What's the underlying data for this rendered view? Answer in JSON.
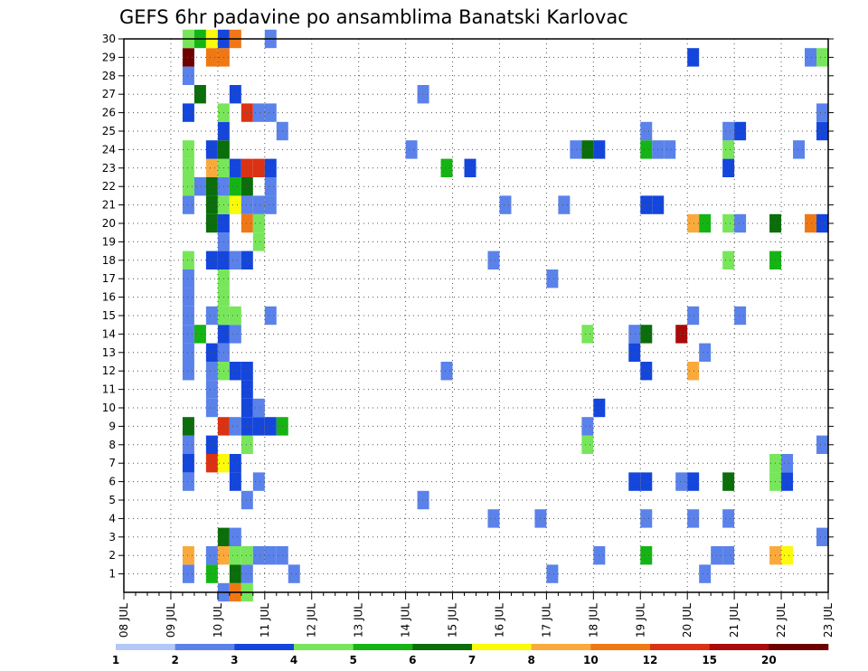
{
  "chart_data": {
    "type": "heatmap",
    "title": "GEFS 6hr padavine po ansamblima Banatski Karlovac",
    "xlabel": "",
    "ylabel": "",
    "x_ticks": [
      "08 JUL",
      "09 JUL",
      "10 JUL",
      "11 JUL",
      "12 JUL",
      "13 JUL",
      "14 JUL",
      "15 JUL",
      "16 JUL",
      "17 JUL",
      "18 JUL",
      "19 JUL",
      "20 JUL",
      "21 JUL",
      "22 JUL",
      "23 JUL"
    ],
    "x_range": [
      "08 JUL 00Z",
      "23 JUL 00Z"
    ],
    "y_ticks": [
      1,
      2,
      3,
      4,
      5,
      6,
      7,
      8,
      9,
      10,
      11,
      12,
      13,
      14,
      15,
      16,
      17,
      18,
      19,
      20,
      21,
      22,
      23,
      24,
      25,
      26,
      27,
      28,
      29,
      30
    ],
    "y_range": [
      0,
      30
    ],
    "grid": true,
    "time_step_hours": 6,
    "colorbar": {
      "labels": [
        "1",
        "2",
        "3",
        "4",
        "5",
        "6",
        "7",
        "8",
        "10",
        "12",
        "15",
        "20"
      ],
      "colors": [
        "#b4c8f8",
        "#5a82ea",
        "#1446dc",
        "#78e65a",
        "#14b414",
        "#0a6e0a",
        "#fafa0a",
        "#faaa3c",
        "#f07814",
        "#dc3214",
        "#aa0a0a",
        "#6e0000"
      ]
    },
    "cells": [
      [
        "09 JUL 06Z",
        1,
        1
      ],
      [
        "09 JUL 06Z",
        2,
        7
      ],
      [
        "09 JUL 06Z",
        6,
        1
      ],
      [
        "09 JUL 06Z",
        7,
        2
      ],
      [
        "09 JUL 06Z",
        8,
        1
      ],
      [
        "09 JUL 06Z",
        9,
        5
      ],
      [
        "09 JUL 06Z",
        12,
        1
      ],
      [
        "09 JUL 06Z",
        13,
        1
      ],
      [
        "09 JUL 06Z",
        14,
        1
      ],
      [
        "09 JUL 06Z",
        15,
        1
      ],
      [
        "09 JUL 06Z",
        16,
        1
      ],
      [
        "09 JUL 06Z",
        17,
        1
      ],
      [
        "09 JUL 06Z",
        18,
        3
      ],
      [
        "09 JUL 06Z",
        21,
        1
      ],
      [
        "09 JUL 06Z",
        22,
        3
      ],
      [
        "09 JUL 06Z",
        23,
        3
      ],
      [
        "09 JUL 06Z",
        24,
        3
      ],
      [
        "09 JUL 06Z",
        26,
        2
      ],
      [
        "09 JUL 06Z",
        28,
        1
      ],
      [
        "09 JUL 06Z",
        29,
        11
      ],
      [
        "09 JUL 06Z",
        30,
        3
      ],
      [
        "09 JUL 12Z",
        14,
        4
      ],
      [
        "09 JUL 12Z",
        22,
        1
      ],
      [
        "09 JUL 12Z",
        27,
        5
      ],
      [
        "09 JUL 12Z",
        30,
        4
      ],
      [
        "09 JUL 18Z",
        1,
        4
      ],
      [
        "09 JUL 18Z",
        2,
        1
      ],
      [
        "09 JUL 18Z",
        7,
        9
      ],
      [
        "09 JUL 18Z",
        8,
        2
      ],
      [
        "09 JUL 18Z",
        10,
        1
      ],
      [
        "09 JUL 18Z",
        11,
        1
      ],
      [
        "09 JUL 18Z",
        12,
        1
      ],
      [
        "09 JUL 18Z",
        13,
        2
      ],
      [
        "09 JUL 18Z",
        15,
        1
      ],
      [
        "09 JUL 18Z",
        18,
        2
      ],
      [
        "09 JUL 18Z",
        20,
        5
      ],
      [
        "09 JUL 18Z",
        21,
        5
      ],
      [
        "09 JUL 18Z",
        22,
        5
      ],
      [
        "09 JUL 18Z",
        23,
        7
      ],
      [
        "09 JUL 18Z",
        24,
        2
      ],
      [
        "09 JUL 18Z",
        29,
        8
      ],
      [
        "09 JUL 18Z",
        30,
        6
      ],
      [
        "10 JUL 00Z",
        0,
        1
      ],
      [
        "10 JUL 00Z",
        2,
        7
      ],
      [
        "10 JUL 00Z",
        3,
        5
      ],
      [
        "10 JUL 00Z",
        7,
        6
      ],
      [
        "10 JUL 00Z",
        9,
        9
      ],
      [
        "10 JUL 00Z",
        12,
        3
      ],
      [
        "10 JUL 00Z",
        13,
        1
      ],
      [
        "10 JUL 00Z",
        14,
        2
      ],
      [
        "10 JUL 00Z",
        15,
        3
      ],
      [
        "10 JUL 00Z",
        16,
        3
      ],
      [
        "10 JUL 00Z",
        17,
        3
      ],
      [
        "10 JUL 00Z",
        18,
        2
      ],
      [
        "10 JUL 00Z",
        19,
        1
      ],
      [
        "10 JUL 00Z",
        20,
        2
      ],
      [
        "10 JUL 00Z",
        21,
        3
      ],
      [
        "10 JUL 00Z",
        22,
        1
      ],
      [
        "10 JUL 00Z",
        23,
        3
      ],
      [
        "10 JUL 00Z",
        24,
        5
      ],
      [
        "10 JUL 00Z",
        25,
        2
      ],
      [
        "10 JUL 00Z",
        26,
        3
      ],
      [
        "10 JUL 00Z",
        29,
        8
      ],
      [
        "10 JUL 00Z",
        30,
        2
      ],
      [
        "10 JUL 06Z",
        0,
        8
      ],
      [
        "10 JUL 06Z",
        1,
        5
      ],
      [
        "10 JUL 06Z",
        2,
        3
      ],
      [
        "10 JUL 06Z",
        3,
        1
      ],
      [
        "10 JUL 06Z",
        6,
        2
      ],
      [
        "10 JUL 06Z",
        7,
        2
      ],
      [
        "10 JUL 06Z",
        9,
        1
      ],
      [
        "10 JUL 06Z",
        12,
        2
      ],
      [
        "10 JUL 06Z",
        14,
        1
      ],
      [
        "10 JUL 06Z",
        15,
        3
      ],
      [
        "10 JUL 06Z",
        18,
        1
      ],
      [
        "10 JUL 06Z",
        21,
        6
      ],
      [
        "10 JUL 06Z",
        22,
        4
      ],
      [
        "10 JUL 06Z",
        23,
        2
      ],
      [
        "10 JUL 06Z",
        27,
        2
      ],
      [
        "10 JUL 06Z",
        30,
        8
      ],
      [
        "10 JUL 12Z",
        0,
        3
      ],
      [
        "10 JUL 12Z",
        1,
        1
      ],
      [
        "10 JUL 12Z",
        2,
        3
      ],
      [
        "10 JUL 12Z",
        5,
        1
      ],
      [
        "10 JUL 12Z",
        8,
        3
      ],
      [
        "10 JUL 12Z",
        9,
        2
      ],
      [
        "10 JUL 12Z",
        10,
        2
      ],
      [
        "10 JUL 12Z",
        11,
        2
      ],
      [
        "10 JUL 12Z",
        12,
        2
      ],
      [
        "10 JUL 12Z",
        18,
        2
      ],
      [
        "10 JUL 12Z",
        20,
        8
      ],
      [
        "10 JUL 12Z",
        21,
        1
      ],
      [
        "10 JUL 12Z",
        22,
        5
      ],
      [
        "10 JUL 12Z",
        23,
        9
      ],
      [
        "10 JUL 12Z",
        26,
        9
      ],
      [
        "10 JUL 18Z",
        2,
        1
      ],
      [
        "10 JUL 18Z",
        6,
        1
      ],
      [
        "10 JUL 18Z",
        9,
        2
      ],
      [
        "10 JUL 18Z",
        10,
        1
      ],
      [
        "10 JUL 18Z",
        19,
        3
      ],
      [
        "10 JUL 18Z",
        20,
        3
      ],
      [
        "10 JUL 18Z",
        21,
        1
      ],
      [
        "10 JUL 18Z",
        23,
        9
      ],
      [
        "10 JUL 18Z",
        26,
        1
      ],
      [
        "11 JUL 00Z",
        2,
        1
      ],
      [
        "11 JUL 00Z",
        9,
        2
      ],
      [
        "11 JUL 00Z",
        15,
        1
      ],
      [
        "11 JUL 00Z",
        21,
        1
      ],
      [
        "11 JUL 00Z",
        22,
        1
      ],
      [
        "11 JUL 00Z",
        23,
        2
      ],
      [
        "11 JUL 00Z",
        26,
        1
      ],
      [
        "11 JUL 00Z",
        30,
        1
      ],
      [
        "11 JUL 06Z",
        2,
        1
      ],
      [
        "11 JUL 06Z",
        9,
        4
      ],
      [
        "11 JUL 06Z",
        25,
        1
      ],
      [
        "11 JUL 12Z",
        1,
        1
      ],
      [
        "14 JUL 00Z",
        24,
        1
      ],
      [
        "14 JUL 06Z",
        5,
        1
      ],
      [
        "14 JUL 06Z",
        27,
        1
      ],
      [
        "14 JUL 18Z",
        12,
        1
      ],
      [
        "14 JUL 18Z",
        23,
        4
      ],
      [
        "15 JUL 06Z",
        23,
        2
      ],
      [
        "15 JUL 18Z",
        4,
        1
      ],
      [
        "15 JUL 18Z",
        18,
        1
      ],
      [
        "16 JUL 00Z",
        21,
        1
      ],
      [
        "16 JUL 18Z",
        4,
        1
      ],
      [
        "17 JUL 00Z",
        1,
        1
      ],
      [
        "17 JUL 00Z",
        17,
        1
      ],
      [
        "17 JUL 06Z",
        21,
        1
      ],
      [
        "17 JUL 12Z",
        24,
        1
      ],
      [
        "17 JUL 18Z",
        8,
        3
      ],
      [
        "17 JUL 18Z",
        9,
        1
      ],
      [
        "17 JUL 18Z",
        14,
        3
      ],
      [
        "17 JUL 18Z",
        24,
        5
      ],
      [
        "18 JUL 00Z",
        2,
        1
      ],
      [
        "18 JUL 00Z",
        10,
        2
      ],
      [
        "18 JUL 00Z",
        24,
        2
      ],
      [
        "18 JUL 18Z",
        6,
        2
      ],
      [
        "18 JUL 18Z",
        13,
        2
      ],
      [
        "18 JUL 18Z",
        14,
        1
      ],
      [
        "19 JUL 00Z",
        2,
        4
      ],
      [
        "19 JUL 00Z",
        4,
        1
      ],
      [
        "19 JUL 00Z",
        6,
        2
      ],
      [
        "19 JUL 00Z",
        12,
        2
      ],
      [
        "19 JUL 00Z",
        14,
        5
      ],
      [
        "19 JUL 00Z",
        21,
        2
      ],
      [
        "19 JUL 00Z",
        24,
        4
      ],
      [
        "19 JUL 00Z",
        25,
        1
      ],
      [
        "19 JUL 06Z",
        21,
        2
      ],
      [
        "19 JUL 06Z",
        24,
        1
      ],
      [
        "19 JUL 12Z",
        24,
        1
      ],
      [
        "19 JUL 18Z",
        6,
        1
      ],
      [
        "19 JUL 18Z",
        14,
        10
      ],
      [
        "20 JUL 00Z",
        4,
        1
      ],
      [
        "20 JUL 00Z",
        6,
        2
      ],
      [
        "20 JUL 00Z",
        12,
        7
      ],
      [
        "20 JUL 00Z",
        15,
        1
      ],
      [
        "20 JUL 00Z",
        20,
        7
      ],
      [
        "20 JUL 00Z",
        29,
        2
      ],
      [
        "20 JUL 06Z",
        1,
        1
      ],
      [
        "20 JUL 06Z",
        13,
        1
      ],
      [
        "20 JUL 06Z",
        20,
        4
      ],
      [
        "20 JUL 12Z",
        2,
        1
      ],
      [
        "20 JUL 18Z",
        2,
        1
      ],
      [
        "20 JUL 18Z",
        4,
        1
      ],
      [
        "20 JUL 18Z",
        6,
        5
      ],
      [
        "20 JUL 18Z",
        18,
        3
      ],
      [
        "20 JUL 18Z",
        20,
        3
      ],
      [
        "20 JUL 18Z",
        23,
        2
      ],
      [
        "20 JUL 18Z",
        24,
        3
      ],
      [
        "20 JUL 18Z",
        25,
        1
      ],
      [
        "21 JUL 00Z",
        15,
        1
      ],
      [
        "21 JUL 00Z",
        20,
        1
      ],
      [
        "21 JUL 00Z",
        25,
        2
      ],
      [
        "21 JUL 18Z",
        2,
        7
      ],
      [
        "21 JUL 18Z",
        6,
        3
      ],
      [
        "21 JUL 18Z",
        7,
        3
      ],
      [
        "21 JUL 18Z",
        18,
        4
      ],
      [
        "21 JUL 18Z",
        20,
        5
      ],
      [
        "22 JUL 00Z",
        2,
        6
      ],
      [
        "22 JUL 00Z",
        6,
        2
      ],
      [
        "22 JUL 00Z",
        7,
        1
      ],
      [
        "22 JUL 06Z",
        24,
        1
      ],
      [
        "22 JUL 12Z",
        20,
        8
      ],
      [
        "22 JUL 12Z",
        29,
        1
      ],
      [
        "22 JUL 18Z",
        3,
        1
      ],
      [
        "22 JUL 18Z",
        8,
        1
      ],
      [
        "22 JUL 18Z",
        20,
        2
      ],
      [
        "22 JUL 18Z",
        25,
        2
      ],
      [
        "22 JUL 18Z",
        26,
        1
      ],
      [
        "22 JUL 18Z",
        29,
        3
      ]
    ]
  }
}
